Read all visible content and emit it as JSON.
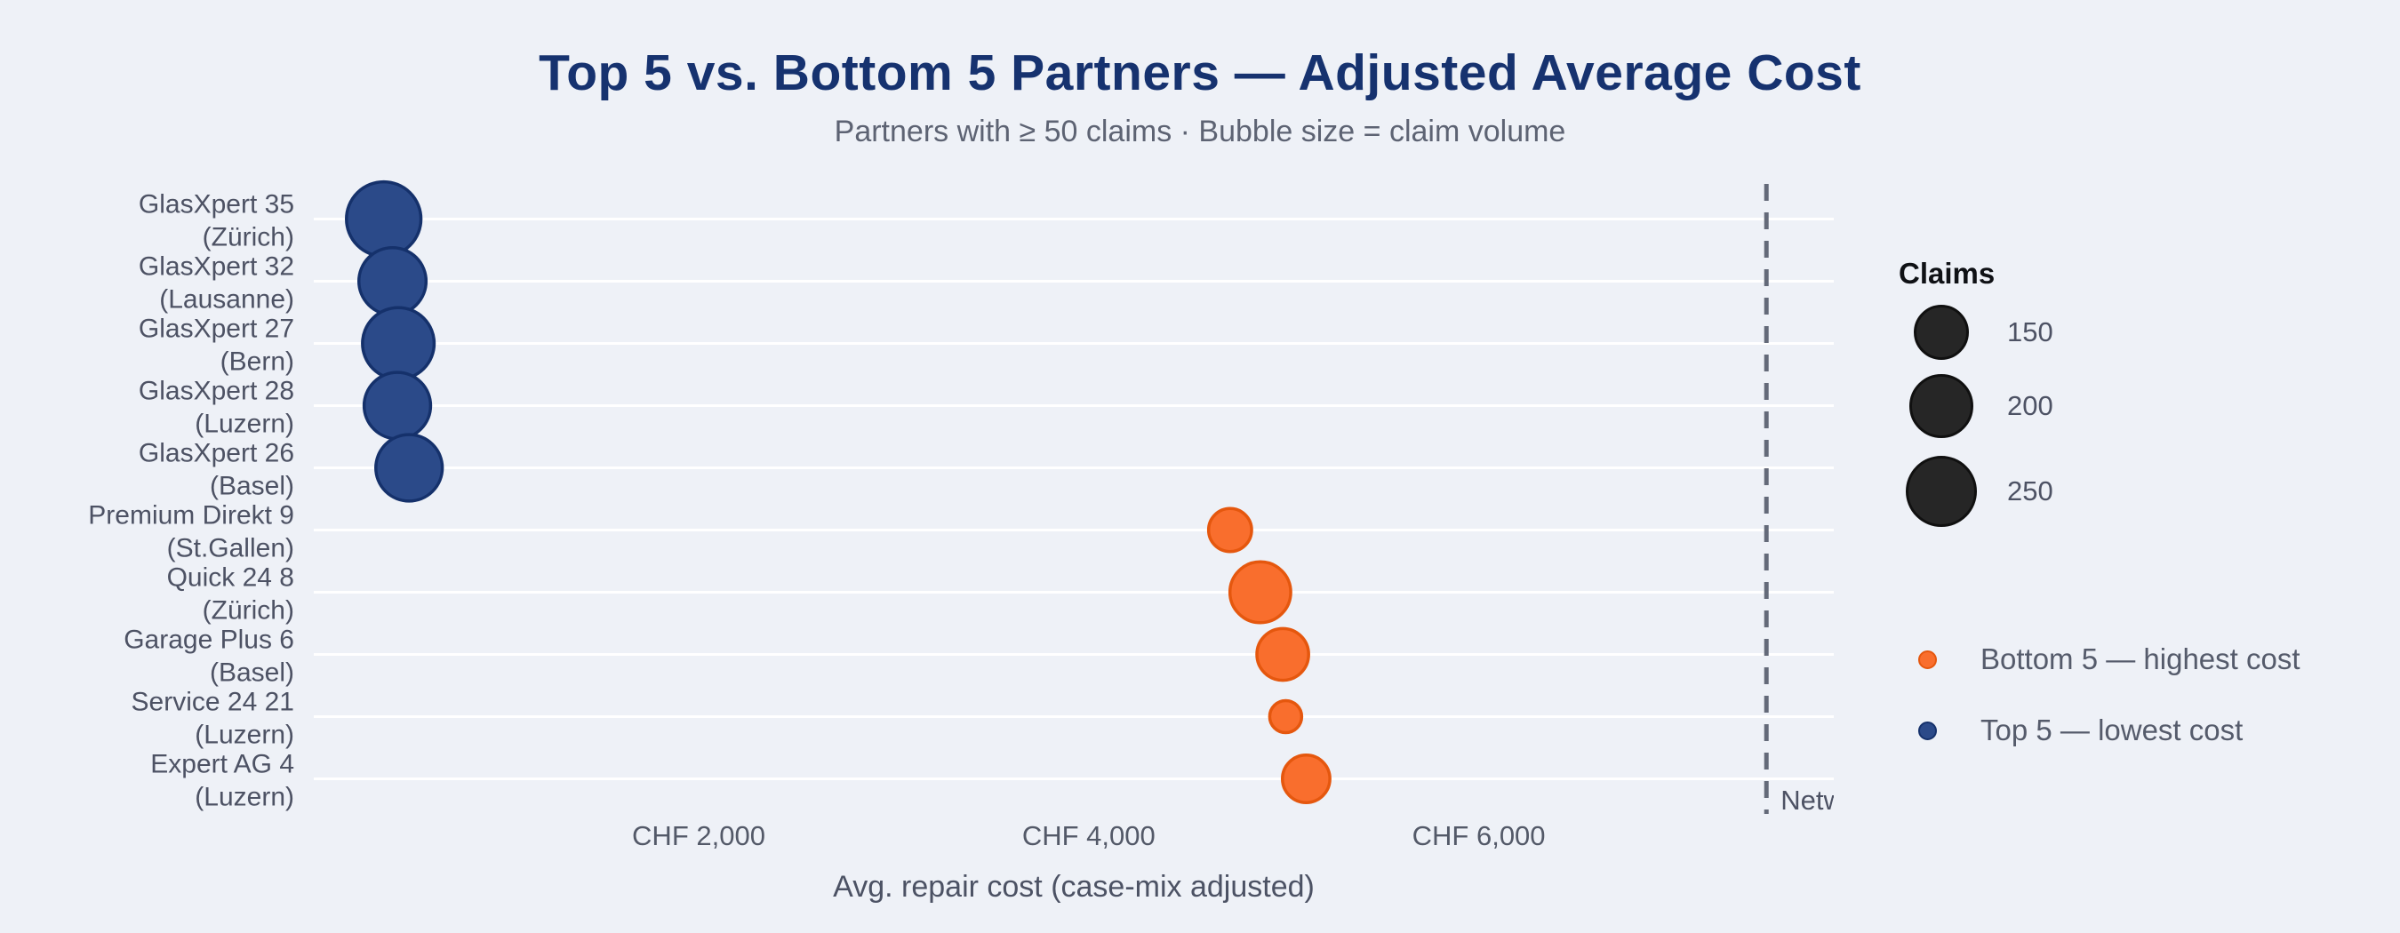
{
  "chart_data": {
    "type": "scatter",
    "title": "Top 5 vs. Bottom 5 Partners — Adjusted Average Cost",
    "subtitle": "Partners with ≥ 50 claims · Bubble size = claim volume",
    "xlabel": "Avg. repair cost (case-mix adjusted)",
    "x_axis": {
      "ticks": [
        {
          "value": 2000,
          "label": "CHF 2,000"
        },
        {
          "value": 4000,
          "label": "CHF 4,000"
        },
        {
          "value": 6000,
          "label": "CHF 6,000"
        }
      ],
      "range_chf": [
        0,
        7820
      ],
      "grid": "horizontal-white-lines"
    },
    "points": [
      {
        "partner": "GlasXpert 35",
        "city_label": "(Zürich)",
        "group": "top5",
        "avg_cost_chf": 385,
        "claims": 270
      },
      {
        "partner": "GlasXpert 32",
        "city_label": "(Lausanne)",
        "group": "top5",
        "avg_cost_chf": 430,
        "claims": 220
      },
      {
        "partner": "GlasXpert 27",
        "city_label": "(Bern)",
        "group": "top5",
        "avg_cost_chf": 460,
        "claims": 250
      },
      {
        "partner": "GlasXpert 28",
        "city_label": "(Luzern)",
        "group": "top5",
        "avg_cost_chf": 455,
        "claims": 215
      },
      {
        "partner": "GlasXpert 26",
        "city_label": "(Basel)",
        "group": "top5",
        "avg_cost_chf": 515,
        "claims": 215
      },
      {
        "partner": "Premium Direkt 9",
        "city_label": "(St.Gallen)",
        "group": "bottom5",
        "avg_cost_chf": 4725,
        "claims": 90
      },
      {
        "partner": "Quick 24 8",
        "city_label": "(Zürich)",
        "group": "bottom5",
        "avg_cost_chf": 4880,
        "claims": 180
      },
      {
        "partner": "Garage Plus 6",
        "city_label": "(Basel)",
        "group": "bottom5",
        "avg_cost_chf": 4995,
        "claims": 130
      },
      {
        "partner": "Service 24 21",
        "city_label": "(Luzern)",
        "group": "bottom5",
        "avg_cost_chf": 5010,
        "claims": 50
      },
      {
        "partner": "Expert AG 4",
        "city_label": "(Luzern)",
        "group": "bottom5",
        "avg_cost_chf": 5115,
        "claims": 110
      }
    ],
    "reference_line": {
      "visible_label": "Netw",
      "value_chf": 7475,
      "style": "dashed"
    },
    "legend_size": {
      "title": "Claims",
      "entries": [
        150,
        200,
        250
      ]
    },
    "legend_color": [
      {
        "label": "Bottom 5 — highest cost",
        "group": "bottom5"
      },
      {
        "label": "Top 5 — lowest cost",
        "group": "top5"
      }
    ],
    "colors": {
      "top5_fill": "#2b4a89",
      "top5_stroke": "#15316b",
      "bottom5_fill": "#f96e2d",
      "bottom5_stroke": "#e5570e",
      "legend_bubble_fill": "#262626",
      "legend_bubble_stroke": "#101010",
      "gridline": "#ffffff",
      "background": "#eef1f7",
      "title_text": "#16326f",
      "muted_text": "#4d5264",
      "reference_line": "#646a79"
    }
  }
}
